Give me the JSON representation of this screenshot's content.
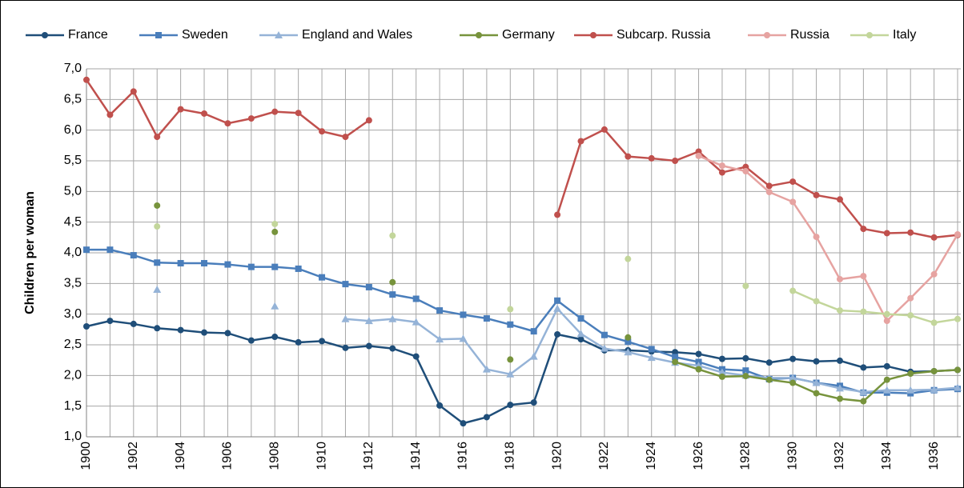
{
  "chart_data": {
    "type": "line",
    "y_label": "Children per woman",
    "x": [
      1900,
      1901,
      1902,
      1903,
      1904,
      1905,
      1906,
      1907,
      1908,
      1909,
      1910,
      1911,
      1912,
      1913,
      1914,
      1915,
      1916,
      1917,
      1918,
      1919,
      1920,
      1921,
      1922,
      1923,
      1924,
      1925,
      1926,
      1927,
      1928,
      1929,
      1930,
      1931,
      1932,
      1933,
      1934,
      1935,
      1936,
      1937
    ],
    "xlim": [
      1900,
      1937
    ],
    "xticks": [
      1900,
      1902,
      1904,
      1906,
      1908,
      1910,
      1912,
      1914,
      1916,
      1918,
      1920,
      1922,
      1924,
      1926,
      1928,
      1930,
      1932,
      1934,
      1936
    ],
    "ylim": [
      1,
      7
    ],
    "yticks": [
      {
        "value": 1,
        "label": "1,0"
      },
      {
        "value": 1.5,
        "label": "1,5"
      },
      {
        "value": 2,
        "label": "2,0"
      },
      {
        "value": 2.5,
        "label": "2,5"
      },
      {
        "value": 3,
        "label": "3,0"
      },
      {
        "value": 3.5,
        "label": "3,5"
      },
      {
        "value": 4,
        "label": "4,0"
      },
      {
        "value": 4.5,
        "label": "4,5"
      },
      {
        "value": 5,
        "label": "5,0"
      },
      {
        "value": 5.5,
        "label": "5,5"
      },
      {
        "value": 6,
        "label": "6,0"
      },
      {
        "value": 6.5,
        "label": "6,5"
      },
      {
        "value": 7,
        "label": "7,0"
      }
    ],
    "grid": true,
    "legend": "top",
    "series": [
      {
        "name": "France",
        "color": "#1f4e79",
        "marker": "circle",
        "values": [
          2.8,
          2.89,
          2.84,
          2.77,
          2.74,
          2.7,
          2.69,
          2.57,
          2.63,
          2.54,
          2.56,
          2.45,
          2.48,
          2.44,
          2.31,
          1.51,
          1.22,
          1.32,
          1.52,
          1.56,
          2.67,
          2.59,
          2.41,
          2.41,
          2.39,
          2.38,
          2.35,
          2.27,
          2.28,
          2.21,
          2.27,
          2.23,
          2.24,
          2.13,
          2.15,
          2.06,
          2.07,
          2.09
        ]
      },
      {
        "name": "Sweden",
        "color": "#4a7ebb",
        "marker": "square",
        "values": [
          4.05,
          4.05,
          3.96,
          3.84,
          3.83,
          3.83,
          3.81,
          3.77,
          3.77,
          3.74,
          3.6,
          3.49,
          3.44,
          3.32,
          3.25,
          3.06,
          2.99,
          2.93,
          2.83,
          2.72,
          3.22,
          2.93,
          2.66,
          2.55,
          2.43,
          2.3,
          2.22,
          2.1,
          2.08,
          1.94,
          1.96,
          1.88,
          1.83,
          1.72,
          1.72,
          1.71,
          1.76,
          1.78
        ]
      },
      {
        "name": "England and Wales",
        "color": "#95b3d7",
        "marker": "triangle",
        "values": [
          null,
          null,
          null,
          3.4,
          null,
          null,
          null,
          null,
          3.13,
          null,
          null,
          2.92,
          2.89,
          2.92,
          2.87,
          2.59,
          2.6,
          2.1,
          2.02,
          2.31,
          3.09,
          2.68,
          2.44,
          2.38,
          2.29,
          2.21,
          2.16,
          2.05,
          2.0,
          1.96,
          1.96,
          1.88,
          1.79,
          1.73,
          1.76,
          1.76,
          1.77,
          1.8
        ]
      },
      {
        "name": "Germany",
        "color": "#77933c",
        "marker": "circle",
        "values": [
          null,
          null,
          null,
          4.77,
          null,
          null,
          null,
          null,
          4.34,
          null,
          null,
          null,
          null,
          3.52,
          null,
          null,
          null,
          null,
          2.26,
          null,
          null,
          null,
          null,
          2.62,
          null,
          2.22,
          2.1,
          1.98,
          1.99,
          1.93,
          1.88,
          1.71,
          1.62,
          1.58,
          1.93,
          2.03,
          2.07,
          2.09
        ]
      },
      {
        "name": "Subcarp. Russia",
        "color": "#c0504d",
        "marker": "circle",
        "values": [
          6.82,
          6.25,
          6.63,
          5.89,
          6.34,
          6.27,
          6.11,
          6.19,
          6.3,
          6.28,
          5.98,
          5.89,
          6.16,
          null,
          null,
          null,
          null,
          null,
          null,
          null,
          4.62,
          5.82,
          6.01,
          5.57,
          5.54,
          5.5,
          5.65,
          5.31,
          5.4,
          5.09,
          5.16,
          4.94,
          4.87,
          4.39,
          4.32,
          4.33,
          4.25,
          4.29
        ]
      },
      {
        "name": "Russia",
        "color": "#e6a3a1",
        "marker": "circle",
        "values": [
          null,
          null,
          null,
          null,
          null,
          null,
          null,
          null,
          null,
          null,
          null,
          null,
          null,
          null,
          null,
          null,
          null,
          null,
          null,
          null,
          null,
          null,
          null,
          null,
          null,
          null,
          5.58,
          5.42,
          5.33,
          4.99,
          4.83,
          4.26,
          3.57,
          3.62,
          2.89,
          3.26,
          3.65,
          4.3
        ]
      },
      {
        "name": "Italy",
        "color": "#c3d69b",
        "marker": "circle",
        "values": [
          null,
          null,
          null,
          4.43,
          null,
          null,
          null,
          null,
          4.47,
          null,
          null,
          null,
          null,
          4.28,
          null,
          null,
          null,
          null,
          3.08,
          null,
          null,
          null,
          null,
          3.9,
          null,
          null,
          null,
          null,
          3.46,
          null,
          3.38,
          3.21,
          3.06,
          3.04,
          3.0,
          2.98,
          2.86,
          2.92
        ]
      }
    ]
  }
}
